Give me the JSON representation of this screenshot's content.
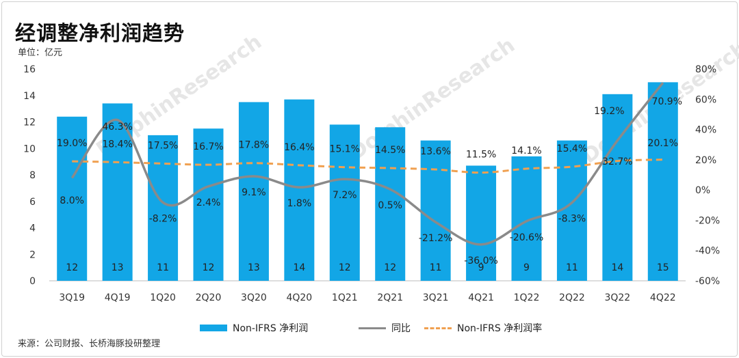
{
  "title": "经调整净利润趋势",
  "unit_label": "单位：亿元",
  "source": "来源：公司财报、长桥海豚投研整理",
  "watermark": "DolphinResearch",
  "colors": {
    "bar": "#12A6E6",
    "yoy_line": "#8A8A8A",
    "margin_line": "#F0A050"
  },
  "chart_data": {
    "type": "bar",
    "categories": [
      "3Q19",
      "4Q19",
      "1Q20",
      "2Q20",
      "3Q20",
      "4Q20",
      "1Q21",
      "2Q21",
      "3Q21",
      "4Q21",
      "1Q22",
      "2Q22",
      "3Q22",
      "4Q22"
    ],
    "left_axis": {
      "ylim": [
        0,
        16
      ],
      "ticks": [
        "0",
        "2",
        "4",
        "6",
        "8",
        "10",
        "12",
        "14",
        "16"
      ]
    },
    "right_axis": {
      "ylim": [
        -60,
        80
      ],
      "ticks": [
        "-60%",
        "-40%",
        "-20%",
        "0%",
        "20%",
        "40%",
        "60%",
        "80%"
      ]
    },
    "grid": false,
    "legend_position": "bottom",
    "series": [
      {
        "name": "Non-IFRS 净利润",
        "type": "bar",
        "axis": "left",
        "values": [
          12.4,
          13.4,
          11.0,
          11.5,
          13.5,
          13.7,
          11.8,
          11.6,
          10.6,
          8.7,
          9.4,
          10.6,
          14.1,
          15.0
        ],
        "labels": [
          "12",
          "13",
          "11",
          "12",
          "13",
          "14",
          "12",
          "12",
          "11",
          "9",
          "9",
          "11",
          "14",
          "15"
        ]
      },
      {
        "name": "同比",
        "type": "line",
        "axis": "right",
        "values": [
          8.0,
          46.3,
          -8.2,
          2.4,
          9.1,
          1.8,
          7.2,
          0.5,
          -21.2,
          -36.0,
          -20.6,
          -8.3,
          32.7,
          70.9
        ],
        "labels": [
          "8.0%",
          "46.3%",
          "-8.2%",
          "2.4%",
          "9.1%",
          "1.8%",
          "7.2%",
          "0.5%",
          "-21.2%",
          "-36.0%",
          "-20.6%",
          "-8.3%",
          "32.7%",
          "70.9%"
        ]
      },
      {
        "name": "Non-IFRS 净利润率",
        "type": "line",
        "axis": "right",
        "values": [
          19.0,
          18.4,
          17.5,
          16.7,
          17.8,
          16.4,
          15.1,
          14.5,
          13.6,
          11.5,
          14.1,
          15.4,
          19.2,
          20.1
        ],
        "labels": [
          "19.0%",
          "18.4%",
          "17.5%",
          "16.7%",
          "17.8%",
          "16.4%",
          "15.1%",
          "14.5%",
          "13.6%",
          "11.5%",
          "14.1%",
          "15.4%",
          "19.2%",
          "20.1%"
        ]
      }
    ]
  }
}
